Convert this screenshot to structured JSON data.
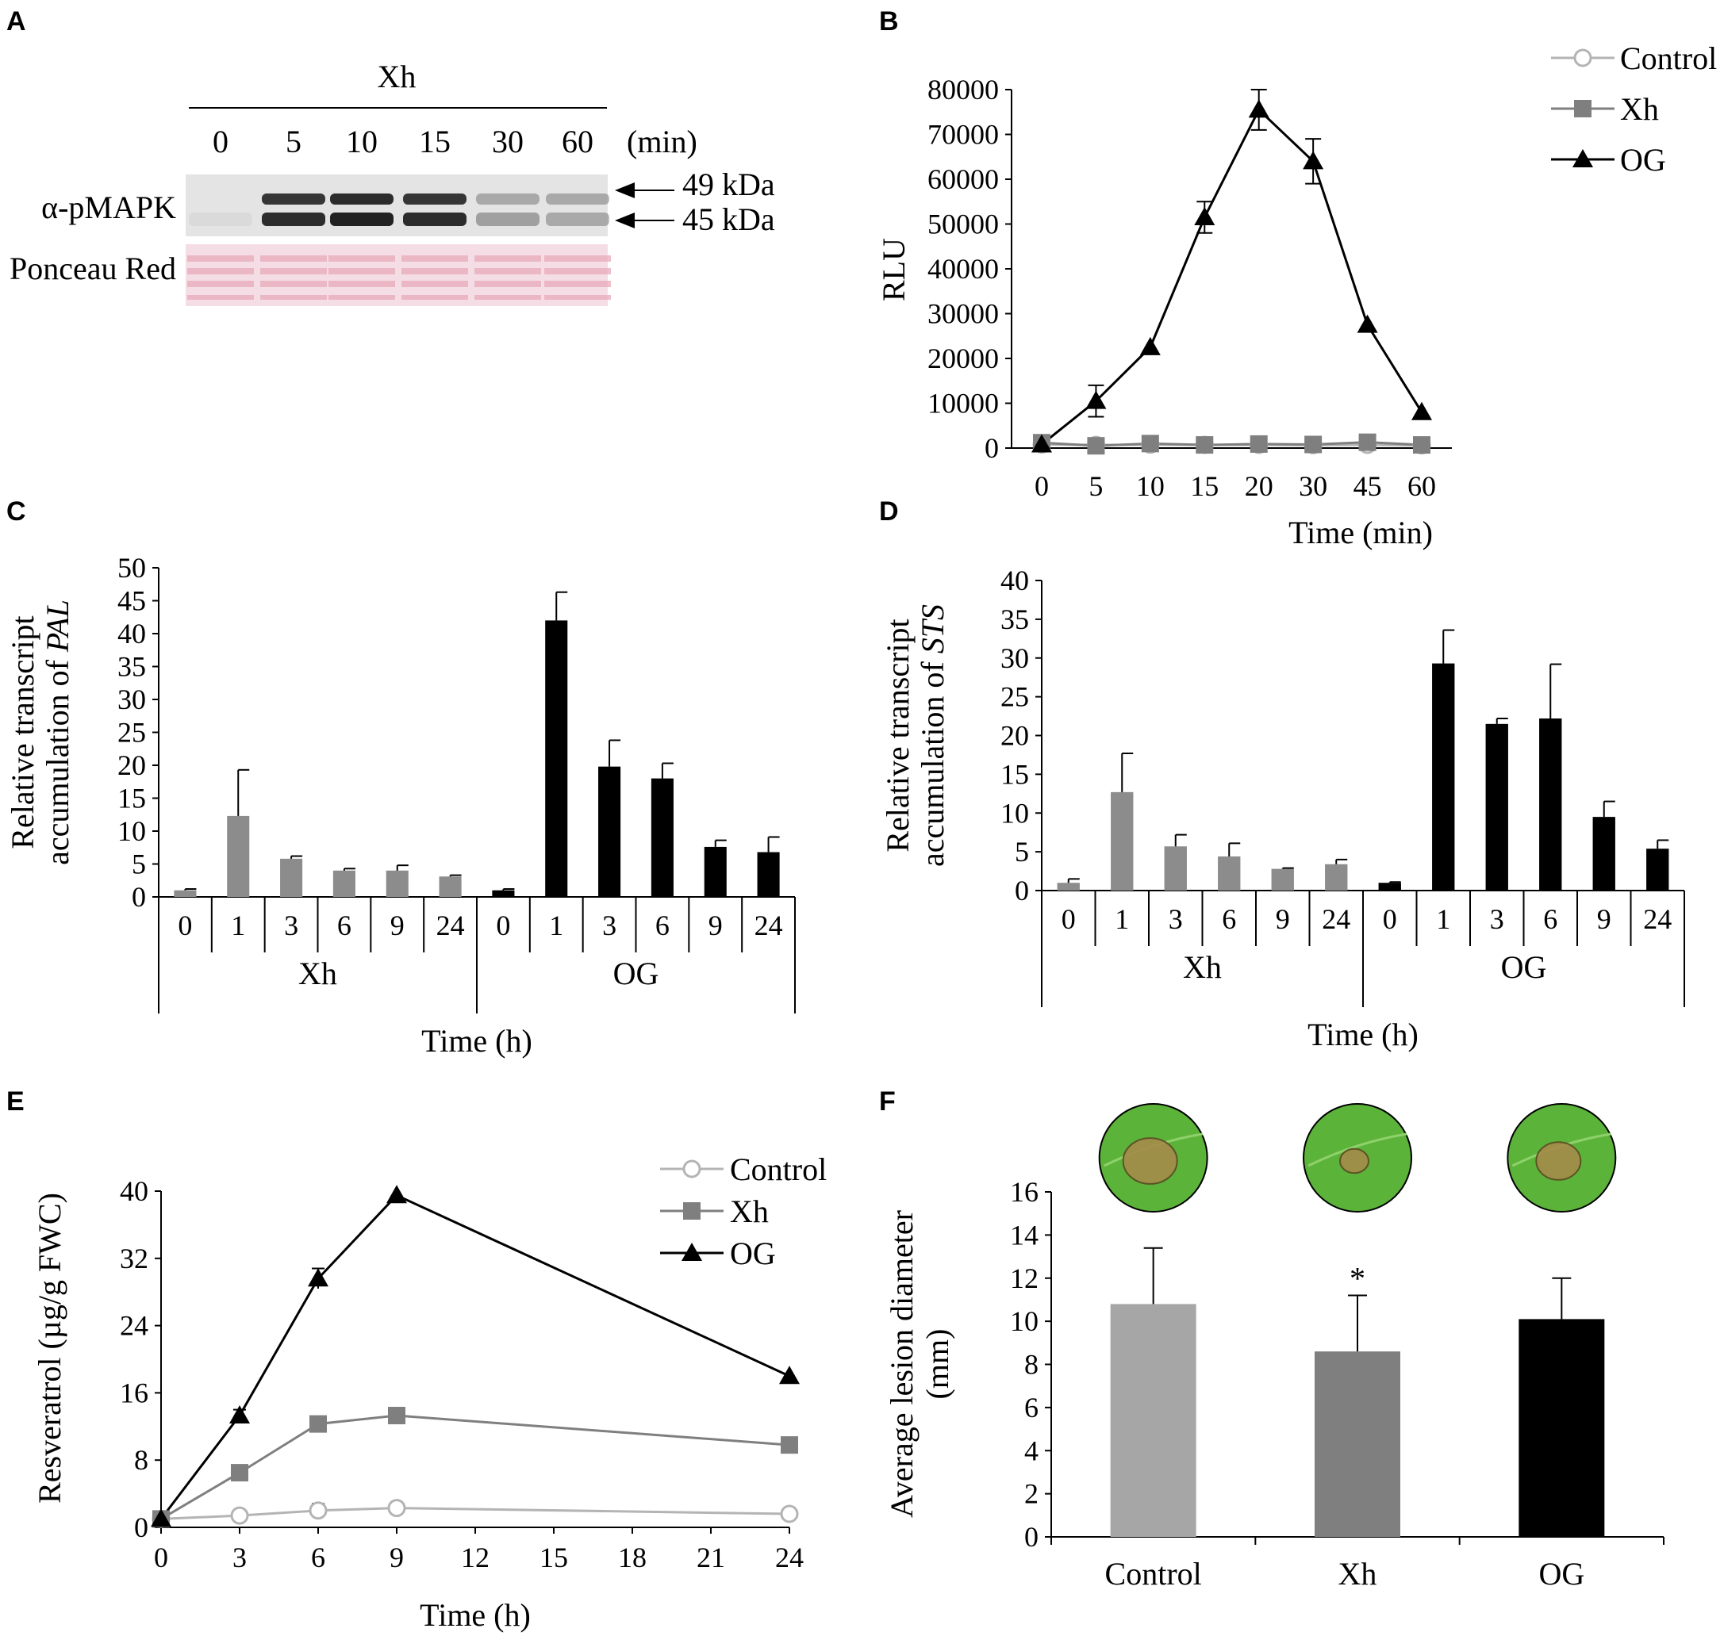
{
  "panels": {
    "A": {
      "label": "A",
      "treatment": "Xh",
      "times": [
        "0",
        "5",
        "10",
        "15",
        "30",
        "60"
      ],
      "time_unit": "(min)",
      "row_labels": [
        "α-pMAPK",
        "Ponceau Red"
      ],
      "band_labels": [
        "49 kDa",
        "45 kDa"
      ],
      "band_intensity_49": [
        0.0,
        0.9,
        0.95,
        0.9,
        0.3,
        0.3
      ],
      "band_intensity_45": [
        0.05,
        0.95,
        1.0,
        0.95,
        0.35,
        0.3
      ],
      "colors": {
        "blot_bg": "#e4e4e4",
        "band": "#222222",
        "ponceau_bg": "#f4dde4",
        "ponceau_band": "#e9a9bb"
      }
    },
    "B": {
      "label": "B"
    },
    "C": {
      "label": "C"
    },
    "D": {
      "label": "D"
    },
    "E": {
      "label": "E"
    },
    "F": {
      "label": "F",
      "leaf_images": [
        "leaf-control",
        "leaf-xh",
        "leaf-og"
      ],
      "colors": {
        "leaf": "#5cb33a",
        "leaf_dark": "#3e8f26",
        "lesion": "#a58b4a"
      }
    }
  },
  "chart_data": [
    {
      "panel": "B",
      "type": "line",
      "x": [
        "0",
        "5",
        "10",
        "15",
        "20",
        "30",
        "45",
        "60"
      ],
      "ylabel": "RLU",
      "xlabel": "Time (min)",
      "ylim": [
        0,
        80000
      ],
      "yticks": [
        "0",
        "10000",
        "20000",
        "30000",
        "40000",
        "50000",
        "60000",
        "70000",
        "80000"
      ],
      "legend": "top-right",
      "series": [
        {
          "name": "Control",
          "marker": "circle-open",
          "color": "#b4b4b4",
          "values": [
            800,
            700,
            750,
            700,
            700,
            650,
            700,
            600
          ],
          "errors": [
            200,
            200,
            200,
            200,
            200,
            200,
            200,
            200
          ]
        },
        {
          "name": "Xh",
          "marker": "square",
          "color": "#7f7f7f",
          "values": [
            1200,
            500,
            1000,
            700,
            900,
            800,
            1300,
            700
          ],
          "errors": [
            300,
            300,
            300,
            300,
            300,
            300,
            300,
            300
          ]
        },
        {
          "name": "OG",
          "marker": "triangle",
          "color": "#000000",
          "values": [
            800,
            10500,
            22500,
            51500,
            75500,
            64000,
            27500,
            8000
          ],
          "errors": [
            300,
            3500,
            500,
            3500,
            4500,
            5000,
            1000,
            500
          ]
        }
      ]
    },
    {
      "panel": "C",
      "type": "bar",
      "gene": "PAL",
      "ylabel_prefix": "Relative transcript",
      "ylabel_line2": "accumulation of ",
      "xlabel": "Time (h)",
      "ylim": [
        0,
        50
      ],
      "yticks": [
        "0",
        "5",
        "10",
        "15",
        "20",
        "25",
        "30",
        "35",
        "40",
        "45",
        "50"
      ],
      "groups": [
        {
          "name": "Xh",
          "color": "#8c8c8c",
          "categories": [
            "0",
            "1",
            "3",
            "6",
            "9",
            "24"
          ],
          "values": [
            1,
            12.3,
            5.8,
            4,
            4,
            3.1
          ],
          "errors": [
            0.2,
            7,
            0.4,
            0.3,
            0.8,
            0.2
          ]
        },
        {
          "name": "OG",
          "color": "#000000",
          "categories": [
            "0",
            "1",
            "3",
            "6",
            "9",
            "24"
          ],
          "values": [
            1,
            42,
            19.8,
            18,
            7.6,
            6.8
          ],
          "errors": [
            0.2,
            4.3,
            4,
            2.3,
            1,
            2.3
          ]
        }
      ]
    },
    {
      "panel": "D",
      "type": "bar",
      "gene": "STS",
      "ylabel_prefix": "Relative transcript",
      "ylabel_line2": "accumulation of ",
      "xlabel": "Time (h)",
      "ylim": [
        0,
        40
      ],
      "yticks": [
        "0",
        "5",
        "10",
        "15",
        "20",
        "25",
        "30",
        "35",
        "40"
      ],
      "groups": [
        {
          "name": "Xh",
          "color": "#8c8c8c",
          "categories": [
            "0",
            "1",
            "3",
            "6",
            "9",
            "24"
          ],
          "values": [
            1,
            12.7,
            5.7,
            4.4,
            2.8,
            3.4
          ],
          "errors": [
            0.5,
            5,
            1.5,
            1.7,
            0.1,
            0.6
          ]
        },
        {
          "name": "OG",
          "color": "#000000",
          "categories": [
            "0",
            "1",
            "3",
            "6",
            "9",
            "24"
          ],
          "values": [
            1,
            29.3,
            21.5,
            22.2,
            9.5,
            5.4
          ],
          "errors": [
            0.1,
            4.3,
            0.7,
            7,
            2,
            1.1
          ]
        }
      ]
    },
    {
      "panel": "E",
      "type": "line",
      "x": [
        0,
        3,
        6,
        9,
        24
      ],
      "xlim": [
        0,
        24
      ],
      "xticks": [
        "0",
        "3",
        "6",
        "9",
        "12",
        "15",
        "18",
        "21",
        "24"
      ],
      "ylabel": "Resveratrol (µg/g FWC)",
      "xlabel": "Time (h)",
      "ylim": [
        0,
        40
      ],
      "yticks": [
        "0",
        "8",
        "16",
        "24",
        "32",
        "40"
      ],
      "legend": "top-right",
      "series": [
        {
          "name": "Control",
          "marker": "circle-open",
          "color": "#b4b4b4",
          "values": [
            1,
            1.4,
            2,
            2.3,
            1.6
          ],
          "errors": [
            0.1,
            0.2,
            0.8,
            0.4,
            0.3
          ]
        },
        {
          "name": "Xh",
          "marker": "square",
          "color": "#7f7f7f",
          "values": [
            1,
            6.5,
            12.3,
            13.3,
            9.8
          ],
          "errors": [
            0.1,
            0.3,
            0.3,
            0.3,
            0.3
          ]
        },
        {
          "name": "OG",
          "marker": "triangle",
          "color": "#000000",
          "values": [
            1,
            13.3,
            29.6,
            39.5,
            18
          ],
          "errors": [
            0.1,
            0.7,
            1.2,
            0.3,
            0.3
          ]
        }
      ]
    },
    {
      "panel": "F",
      "type": "bar",
      "categories": [
        "Control",
        "Xh",
        "OG"
      ],
      "values": [
        10.8,
        8.6,
        10.1
      ],
      "errors": [
        2.6,
        2.6,
        1.9
      ],
      "colors": [
        "#a6a6a6",
        "#7f7f7f",
        "#000000"
      ],
      "significance": [
        "",
        "*",
        ""
      ],
      "ylabel": "Average lesion diameter (mm)",
      "ylim": [
        0,
        16
      ],
      "yticks": [
        "0",
        "2",
        "4",
        "6",
        "8",
        "10",
        "12",
        "14",
        "16"
      ]
    }
  ]
}
